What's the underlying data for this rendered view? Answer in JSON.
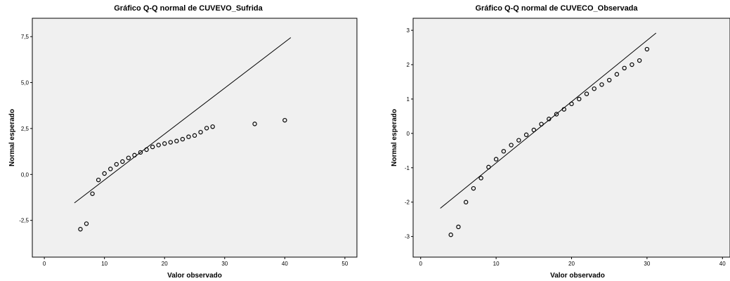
{
  "colors": {
    "plot_background": "#f0f0f0",
    "frame": "#000000",
    "line": "#000000",
    "marker_stroke": "#000000"
  },
  "chart_data": [
    {
      "type": "scatter",
      "title": "Gráfico Q-Q normal de CUVEVO_Sufrida",
      "xlabel": "Valor observado",
      "ylabel": "Normal esperado",
      "xlim": [
        -2,
        52
      ],
      "ylim": [
        -4.5,
        8.5
      ],
      "xticks": [
        0,
        10,
        20,
        30,
        40,
        50
      ],
      "xtick_labels": [
        "0",
        "10",
        "20",
        "30",
        "40",
        "50"
      ],
      "yticks": [
        -2.5,
        0,
        2.5,
        5,
        7.5
      ],
      "ytick_labels": [
        "-2,5",
        "0,0",
        "2,5",
        "5,0",
        "7,5"
      ],
      "reference_line": {
        "x": [
          5,
          41
        ],
        "y": [
          -1.55,
          7.45
        ]
      },
      "points": [
        {
          "x": 6,
          "y": -2.98
        },
        {
          "x": 7,
          "y": -2.68
        },
        {
          "x": 8,
          "y": -1.05
        },
        {
          "x": 9,
          "y": -0.3
        },
        {
          "x": 10,
          "y": 0.05
        },
        {
          "x": 11,
          "y": 0.3
        },
        {
          "x": 12,
          "y": 0.55
        },
        {
          "x": 13,
          "y": 0.7
        },
        {
          "x": 14,
          "y": 0.9
        },
        {
          "x": 15,
          "y": 1.05
        },
        {
          "x": 16,
          "y": 1.2
        },
        {
          "x": 17,
          "y": 1.35
        },
        {
          "x": 18,
          "y": 1.5
        },
        {
          "x": 19,
          "y": 1.6
        },
        {
          "x": 20,
          "y": 1.68
        },
        {
          "x": 21,
          "y": 1.75
        },
        {
          "x": 22,
          "y": 1.82
        },
        {
          "x": 23,
          "y": 1.92
        },
        {
          "x": 24,
          "y": 2.05
        },
        {
          "x": 25,
          "y": 2.12
        },
        {
          "x": 26,
          "y": 2.3
        },
        {
          "x": 27,
          "y": 2.52
        },
        {
          "x": 28,
          "y": 2.6
        },
        {
          "x": 35,
          "y": 2.75
        },
        {
          "x": 40,
          "y": 2.95
        }
      ]
    },
    {
      "type": "scatter",
      "title": "Gráfico Q-Q normal de CUVECO_Observada",
      "xlabel": "Valor observado",
      "ylabel": "Normal esperado",
      "xlim": [
        -1,
        41
      ],
      "ylim": [
        -3.6,
        3.35
      ],
      "xticks": [
        0,
        10,
        20,
        30,
        40
      ],
      "xtick_labels": [
        "0",
        "10",
        "20",
        "30",
        "40"
      ],
      "yticks": [
        -3,
        -2,
        -1,
        0,
        1,
        2,
        3
      ],
      "ytick_labels": [
        "-3",
        "-2",
        "-1",
        "0",
        "1",
        "2",
        "3"
      ],
      "reference_line": {
        "x": [
          2.6,
          31.2
        ],
        "y": [
          -2.18,
          2.92
        ]
      },
      "points": [
        {
          "x": 4,
          "y": -2.95
        },
        {
          "x": 5,
          "y": -2.72
        },
        {
          "x": 6,
          "y": -2.0
        },
        {
          "x": 7,
          "y": -1.6
        },
        {
          "x": 8,
          "y": -1.3
        },
        {
          "x": 9,
          "y": -0.98
        },
        {
          "x": 10,
          "y": -0.75
        },
        {
          "x": 11,
          "y": -0.52
        },
        {
          "x": 12,
          "y": -0.34
        },
        {
          "x": 13,
          "y": -0.2
        },
        {
          "x": 14,
          "y": -0.04
        },
        {
          "x": 15,
          "y": 0.1
        },
        {
          "x": 16,
          "y": 0.27
        },
        {
          "x": 17,
          "y": 0.42
        },
        {
          "x": 18,
          "y": 0.56
        },
        {
          "x": 19,
          "y": 0.7
        },
        {
          "x": 20,
          "y": 0.86
        },
        {
          "x": 21,
          "y": 1.0
        },
        {
          "x": 22,
          "y": 1.15
        },
        {
          "x": 23,
          "y": 1.3
        },
        {
          "x": 24,
          "y": 1.42
        },
        {
          "x": 25,
          "y": 1.55
        },
        {
          "x": 26,
          "y": 1.72
        },
        {
          "x": 27,
          "y": 1.9
        },
        {
          "x": 28,
          "y": 2.0
        },
        {
          "x": 29,
          "y": 2.12
        },
        {
          "x": 30,
          "y": 2.45
        }
      ]
    }
  ]
}
